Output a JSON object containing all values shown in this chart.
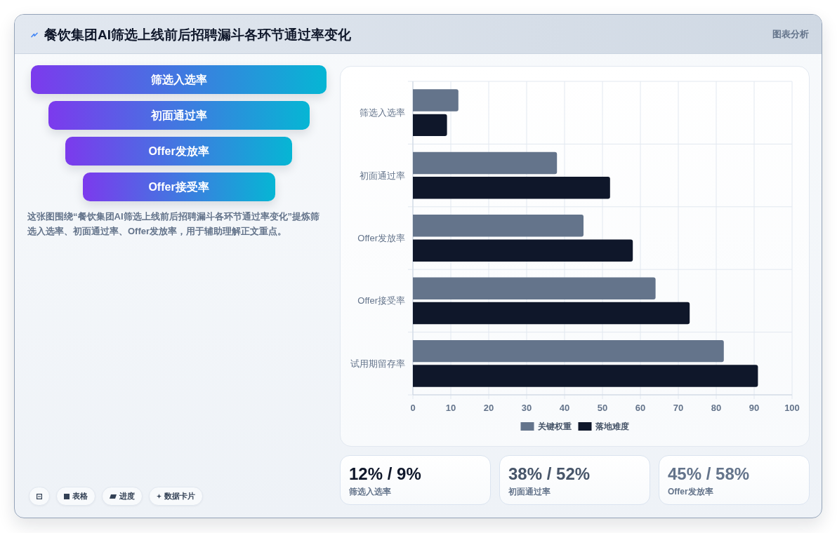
{
  "chart_data": [
    {
      "type": "other",
      "title": "餐饮集团AI筛选上线前后招聘漏斗各环节通过率变化",
      "categories": [
        "筛选入选率",
        "初面通过率",
        "Offer发放率",
        "Offer接受率"
      ],
      "annotations": [
        "图表分析",
        "这张图围绕“餐饮集团AI筛选上线前后招聘漏斗各环节通过率变化”提炼筛选入选率、初面通过率、Offer发放率，用于辅助理解正文重点。",
        "表格",
        "进度",
        "数据卡片"
      ]
    },
    {
      "type": "bar",
      "orientation": "horizontal",
      "categories": [
        "筛选入选率",
        "初面通过率",
        "Offer发放率",
        "Offer接受率",
        "试用期留存率"
      ],
      "series": [
        {
          "name": "关键权重",
          "color": "#64748b",
          "values": [
            12,
            38,
            45,
            64,
            82
          ]
        },
        {
          "name": "落地难度",
          "color": "#0f172a",
          "values": [
            9,
            52,
            58,
            73,
            91
          ]
        }
      ],
      "xlim": [
        0,
        100
      ],
      "xticks": [
        0,
        10,
        20,
        30,
        40,
        50,
        60,
        70,
        80,
        90,
        100
      ],
      "grid": true,
      "legend": "bottom"
    },
    {
      "type": "other",
      "categories": [
        "筛选入选率",
        "初面通过率",
        "Offer发放率"
      ],
      "value_labels": [
        "12% / 9%",
        "38% / 52%",
        "45% / 58%"
      ],
      "colors": [
        "#0f172a",
        "#475569",
        "#64748b"
      ]
    }
  ]
}
